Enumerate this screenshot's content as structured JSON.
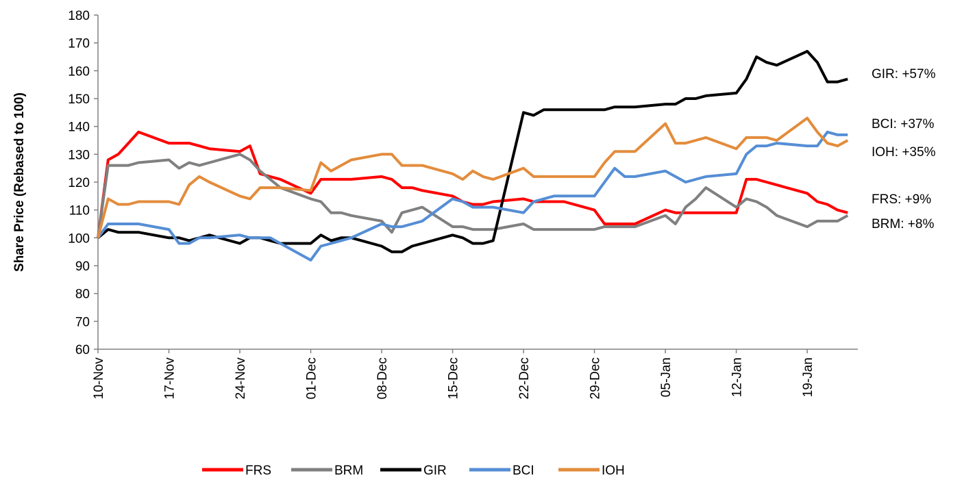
{
  "chart_data": {
    "type": "line",
    "y_label": "Share Price (Rebased to 100)",
    "x": [
      0,
      1,
      2,
      3,
      4,
      7,
      8,
      9,
      10,
      11,
      14,
      15,
      16,
      17,
      18,
      21,
      22,
      23,
      24,
      25,
      28,
      29,
      30,
      31,
      32,
      35,
      36,
      37,
      38,
      39,
      42,
      43,
      44,
      45,
      46,
      49,
      50,
      51,
      52,
      53,
      56,
      57,
      58,
      59,
      60,
      63,
      64,
      65,
      66,
      67,
      70,
      71,
      72,
      73,
      74
    ],
    "xlim": [
      0,
      75
    ],
    "xticks": [
      {
        "value": 0,
        "label": "10-Nov"
      },
      {
        "value": 7,
        "label": "17-Nov"
      },
      {
        "value": 14,
        "label": "24-Nov"
      },
      {
        "value": 21,
        "label": "01-Dec"
      },
      {
        "value": 28,
        "label": "08-Dec"
      },
      {
        "value": 35,
        "label": "15-Dec"
      },
      {
        "value": 42,
        "label": "22-Dec"
      },
      {
        "value": 49,
        "label": "29-Dec"
      },
      {
        "value": 56,
        "label": "05-Jan"
      },
      {
        "value": 63,
        "label": "12-Jan"
      },
      {
        "value": 70,
        "label": "19-Jan"
      }
    ],
    "ylim": [
      60,
      180
    ],
    "yticks": [
      60,
      70,
      80,
      90,
      100,
      110,
      120,
      130,
      140,
      150,
      160,
      170,
      180
    ],
    "grid": false,
    "legend": "bottom",
    "series": [
      {
        "name": "FRS",
        "color": "#ff0000",
        "values": [
          100,
          128,
          130,
          134,
          138,
          134,
          134,
          134,
          133,
          132,
          131,
          133,
          123,
          122,
          121,
          116,
          121,
          121,
          121,
          121,
          122,
          121,
          118,
          118,
          117,
          115,
          113,
          112,
          112,
          113,
          114,
          113,
          113,
          113,
          113,
          110,
          105,
          105,
          105,
          105,
          110,
          109,
          109,
          109,
          109,
          109,
          121,
          121,
          120,
          119,
          116,
          113,
          112,
          110,
          109
        ]
      },
      {
        "name": "BRM",
        "color": "#808080",
        "values": [
          100,
          126,
          126,
          126,
          127,
          128,
          125,
          127,
          126,
          127,
          130,
          128,
          124,
          121,
          118,
          114,
          113,
          109,
          109,
          108,
          106,
          102,
          109,
          110,
          111,
          104,
          104,
          103,
          103,
          103,
          105,
          103,
          103,
          103,
          103,
          103,
          104,
          104,
          104,
          104,
          108,
          105,
          111,
          114,
          118,
          111,
          114,
          113,
          111,
          108,
          104,
          106,
          106,
          106,
          108
        ]
      },
      {
        "name": "GIR",
        "color": "#000000",
        "values": [
          100,
          103,
          102,
          102,
          102,
          100,
          100,
          99,
          100,
          101,
          98,
          100,
          100,
          99,
          98,
          98,
          101,
          99,
          100,
          100,
          97,
          95,
          95,
          97,
          98,
          101,
          100,
          98,
          98,
          99,
          145,
          144,
          146,
          146,
          146,
          146,
          146,
          147,
          147,
          147,
          148,
          148,
          150,
          150,
          151,
          152,
          157,
          165,
          163,
          162,
          167,
          163,
          156,
          156,
          157
        ]
      },
      {
        "name": "BCI",
        "color": "#558ed5",
        "values": [
          100,
          105,
          105,
          105,
          105,
          103,
          98,
          98,
          100,
          100,
          101,
          100,
          100,
          100,
          98,
          92,
          97,
          98,
          99,
          100,
          105,
          104,
          104,
          105,
          106,
          114,
          113,
          111,
          111,
          111,
          109,
          113,
          114,
          115,
          115,
          115,
          120,
          125,
          122,
          122,
          124,
          122,
          120,
          121,
          122,
          123,
          130,
          133,
          133,
          134,
          133,
          133,
          138,
          137,
          137
        ]
      },
      {
        "name": "IOH",
        "color": "#e38c3c",
        "values": [
          100,
          114,
          112,
          112,
          113,
          113,
          112,
          119,
          122,
          120,
          115,
          114,
          118,
          118,
          118,
          117,
          127,
          124,
          126,
          128,
          130,
          130,
          126,
          126,
          126,
          123,
          121,
          124,
          122,
          121,
          125,
          122,
          122,
          122,
          122,
          122,
          127,
          131,
          131,
          131,
          141,
          134,
          134,
          135,
          136,
          132,
          136,
          136,
          136,
          135,
          143,
          138,
          134,
          133,
          135
        ]
      }
    ],
    "annotations": [
      "GIR: +57%",
      "BCI: +37%",
      "IOH: +35%",
      "FRS: +9%",
      "BRM: +8%"
    ]
  }
}
